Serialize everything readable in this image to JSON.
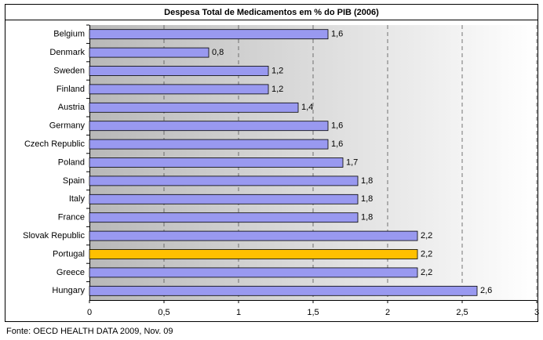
{
  "chart_data": {
    "type": "barh",
    "title": "Despesa Total de Medicamentos em % do PIB (2006)",
    "categories": [
      "Belgium",
      "Denmark",
      "Sweden",
      "Finland",
      "Austria",
      "Germany",
      "Czech Republic",
      "Poland",
      "Spain",
      "Italy",
      "France",
      "Slovak Republic",
      "Portugal",
      "Greece",
      "Hungary"
    ],
    "values": [
      1.6,
      0.8,
      1.2,
      1.2,
      1.4,
      1.6,
      1.6,
      1.7,
      1.8,
      1.8,
      1.8,
      2.2,
      2.2,
      2.2,
      2.6
    ],
    "value_labels": [
      "1,6",
      "0,8",
      "1,2",
      "1,2",
      "1,4",
      "1,6",
      "1,6",
      "1,7",
      "1,8",
      "1,8",
      "1,8",
      "2,2",
      "2,2",
      "2,2",
      "2,6"
    ],
    "colors": [
      "#9999f0",
      "#9999f0",
      "#9999f0",
      "#9999f0",
      "#9999f0",
      "#9999f0",
      "#9999f0",
      "#9999f0",
      "#9999f0",
      "#9999f0",
      "#9999f0",
      "#9999f0",
      "#ffc000",
      "#9999f0",
      "#9999f0"
    ],
    "xlim": [
      0,
      3
    ],
    "xticks": [
      0,
      {
        "value": 0.5,
        "label": "0,5"
      },
      1,
      {
        "value": 1.5,
        "label": "1,5"
      },
      2,
      {
        "value": 2.5,
        "label": "2,5"
      },
      3
    ],
    "grid": true,
    "source": "Fonte: OECD HEALTH DATA 2009, Nov. 09"
  }
}
